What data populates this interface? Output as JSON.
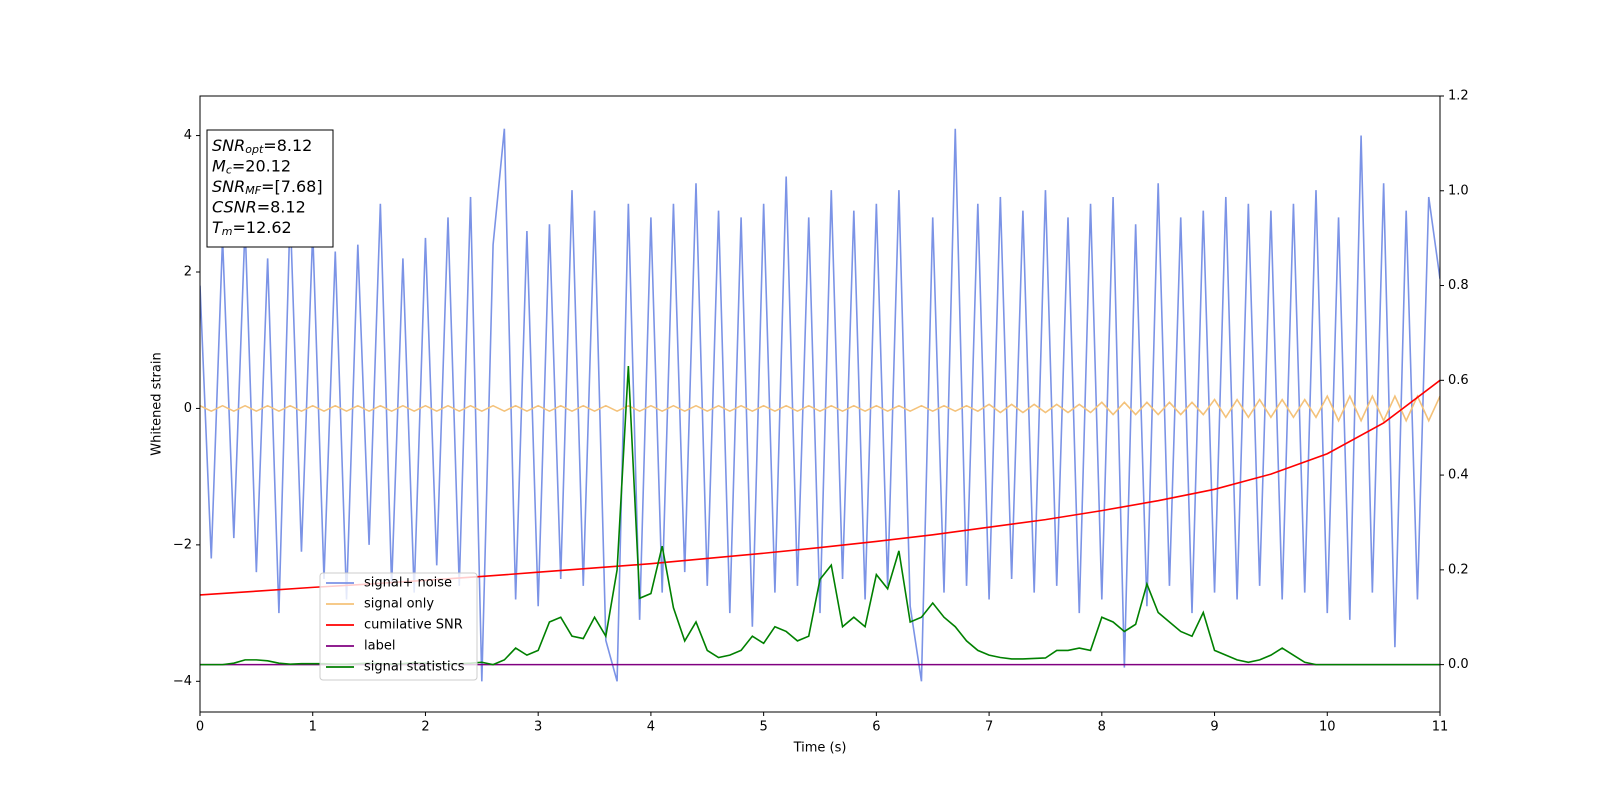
{
  "chart_data": {
    "type": "line",
    "xlabel": "Time (s)",
    "ylabel": "Whitened strain",
    "xlim": [
      0,
      11
    ],
    "xticks": [
      0,
      1,
      2,
      3,
      4,
      5,
      6,
      7,
      8,
      9,
      10,
      11
    ],
    "ylim": [
      -4.45,
      4.58
    ],
    "yticks": [
      {
        "value": -4,
        "label": "−4"
      },
      {
        "value": -2,
        "label": "−2"
      },
      0,
      2,
      4
    ],
    "y2lim": [
      -0.1,
      1.2
    ],
    "y2ticks": [
      {
        "value": 0,
        "label": "0.0"
      },
      0.2,
      0.4,
      0.6,
      0.8,
      {
        "value": 1,
        "label": "1.0"
      },
      1.2
    ],
    "legend": "lower left",
    "annotations": [
      {
        "main": "SNR",
        "sub": "opt",
        "rest": "=8.12"
      },
      {
        "main": "M",
        "sub": "c",
        "rest": "=20.12"
      },
      {
        "main": "SNR",
        "sub": "MF",
        "rest": "=[7.68]"
      },
      {
        "main": "CSNR",
        "rest": "=8.12"
      },
      {
        "main": "T",
        "sub": "m",
        "rest": "=12.62"
      }
    ],
    "x": [
      0,
      0.1,
      0.2,
      0.3,
      0.4,
      0.5,
      0.6,
      0.7,
      0.8,
      0.9,
      1,
      1.1,
      1.2,
      1.3,
      1.4,
      1.5,
      1.6,
      1.7,
      1.8,
      1.9,
      2,
      2.1,
      2.2,
      2.3,
      2.4,
      2.5,
      2.6,
      2.7,
      2.8,
      2.9,
      3,
      3.1,
      3.2,
      3.3,
      3.4,
      3.5,
      3.6,
      3.7,
      3.8,
      3.9,
      4,
      4.1,
      4.2,
      4.3,
      4.4,
      4.5,
      4.6,
      4.7,
      4.8,
      4.9,
      5,
      5.1,
      5.2,
      5.3,
      5.4,
      5.5,
      5.6,
      5.7,
      5.8,
      5.9,
      6,
      6.1,
      6.2,
      6.3,
      6.4,
      6.5,
      6.6,
      6.7,
      6.8,
      6.9,
      7,
      7.1,
      7.2,
      7.3,
      7.4,
      7.5,
      7.6,
      7.7,
      7.8,
      7.9,
      8,
      8.1,
      8.2,
      8.3,
      8.4,
      8.5,
      8.6,
      8.7,
      8.8,
      8.9,
      9,
      9.1,
      9.2,
      9.3,
      9.4,
      9.5,
      9.6,
      9.7,
      9.8,
      9.9,
      10,
      10.1,
      10.2,
      10.3,
      10.4,
      10.5,
      10.6,
      10.7,
      10.8,
      10.9,
      11
    ],
    "series": [
      {
        "name": "signal+ noise",
        "color": "#7b93e6",
        "values": [
          1.8,
          -2.2,
          2.5,
          -1.9,
          2.7,
          -2.4,
          2.2,
          -3.0,
          2.9,
          -2.1,
          2.6,
          -2.5,
          2.3,
          -2.8,
          2.4,
          -2.0,
          3.0,
          -2.6,
          2.2,
          -2.7,
          2.5,
          -2.3,
          2.8,
          -2.6,
          3.1,
          -4.0,
          2.4,
          4.1,
          -2.8,
          2.6,
          -2.9,
          2.7,
          -2.5,
          3.2,
          -2.6,
          2.9,
          -3.4,
          -4.0,
          3.0,
          -3.1,
          2.8,
          -2.7,
          3.0,
          -2.4,
          3.3,
          -2.6,
          2.9,
          -3.0,
          2.8,
          -3.2,
          3.0,
          -2.7,
          3.4,
          -2.6,
          2.8,
          -3.0,
          3.2,
          -2.5,
          2.9,
          -2.8,
          3.0,
          -2.6,
          3.2,
          -2.9,
          -4.0,
          2.8,
          -2.7,
          4.1,
          -2.6,
          3.0,
          -2.8,
          3.1,
          -2.5,
          2.9,
          -2.7,
          3.2,
          -2.6,
          2.8,
          -3.0,
          3.0,
          -2.8,
          3.1,
          -3.8,
          2.7,
          -2.9,
          3.3,
          -2.6,
          2.8,
          -3.0,
          2.9,
          -2.7,
          3.1,
          -2.8,
          3.0,
          -2.6,
          2.9,
          -2.8,
          3.0,
          -2.7,
          3.2,
          -3.0,
          2.8,
          -3.1,
          4.0,
          -2.7,
          3.3,
          -3.5,
          2.9,
          -2.8,
          3.1,
          1.9
        ]
      },
      {
        "name": "signal only",
        "color": "#f4c27a",
        "values": [
          0.04,
          -0.04,
          0.04,
          -0.04,
          0.04,
          -0.04,
          0.04,
          -0.04,
          0.04,
          -0.04,
          0.04,
          -0.04,
          0.04,
          -0.04,
          0.04,
          -0.04,
          0.04,
          -0.04,
          0.04,
          -0.04,
          0.04,
          -0.04,
          0.04,
          -0.04,
          0.04,
          -0.04,
          0.04,
          -0.04,
          0.04,
          -0.04,
          0.04,
          -0.04,
          0.04,
          -0.04,
          0.04,
          -0.04,
          0.04,
          -0.04,
          0.04,
          -0.04,
          0.04,
          -0.04,
          0.04,
          -0.04,
          0.04,
          -0.04,
          0.04,
          -0.04,
          0.04,
          -0.04,
          0.04,
          -0.04,
          0.04,
          -0.04,
          0.04,
          -0.04,
          0.04,
          -0.04,
          0.04,
          -0.04,
          0.04,
          -0.04,
          0.04,
          -0.04,
          0.04,
          -0.04,
          0.04,
          -0.04,
          0.04,
          -0.04,
          0.06,
          -0.06,
          0.06,
          -0.06,
          0.06,
          -0.06,
          0.06,
          -0.06,
          0.06,
          -0.06,
          0.09,
          -0.09,
          0.09,
          -0.09,
          0.09,
          -0.09,
          0.09,
          -0.09,
          0.09,
          -0.09,
          0.13,
          -0.13,
          0.13,
          -0.13,
          0.13,
          -0.13,
          0.13,
          -0.13,
          0.13,
          -0.13,
          0.18,
          -0.18,
          0.18,
          -0.18,
          0.18,
          -0.18,
          0.18,
          -0.18,
          0.18,
          -0.18,
          0.18
        ]
      },
      {
        "name": "cumilative SNR",
        "color": "red",
        "axis": "y2",
        "x": [
          0,
          0.5,
          1,
          1.5,
          2,
          2.5,
          3,
          3.5,
          4,
          4.5,
          5,
          5.5,
          6,
          6.5,
          7,
          7.5,
          8,
          8.5,
          9,
          9.5,
          10,
          10.5,
          11
        ],
        "values": [
          0.147,
          0.155,
          0.163,
          0.17,
          0.178,
          0.186,
          0.195,
          0.204,
          0.213,
          0.224,
          0.235,
          0.247,
          0.26,
          0.274,
          0.29,
          0.306,
          0.325,
          0.346,
          0.37,
          0.402,
          0.445,
          0.51,
          0.6
        ]
      },
      {
        "name": "label",
        "color": "purple",
        "axis": "y2",
        "x": [
          0,
          11
        ],
        "values": [
          0,
          0
        ]
      },
      {
        "name": "signal statistics",
        "color": "green",
        "axis": "y2",
        "values": [
          0,
          0,
          0,
          0.003,
          0.01,
          0.01,
          0.008,
          0.003,
          0.001,
          0.002,
          0.002,
          0.002,
          0.001,
          0.001,
          0.002,
          0.003,
          0.002,
          0.001,
          0.002,
          0.004,
          0.003,
          0.002,
          0.001,
          0.002,
          0.003,
          0.005,
          0,
          0.01,
          0.035,
          0.02,
          0.03,
          0.09,
          0.1,
          0.06,
          0.055,
          0.1,
          0.06,
          0.2,
          0.63,
          0.14,
          0.15,
          0.25,
          0.12,
          0.05,
          0.09,
          0.03,
          0.015,
          0.02,
          0.03,
          0.06,
          0.045,
          0.08,
          0.07,
          0.05,
          0.06,
          0.18,
          0.21,
          0.08,
          0.1,
          0.08,
          0.19,
          0.16,
          0.24,
          0.09,
          0.1,
          0.13,
          0.1,
          0.08,
          0.05,
          0.03,
          0.02,
          0.015,
          0.012,
          0.012,
          0.013,
          0.014,
          0.03,
          0.03,
          0.035,
          0.03,
          0.1,
          0.09,
          0.07,
          0.085,
          0.17,
          0.11,
          0.09,
          0.07,
          0.06,
          0.11,
          0.03,
          0.02,
          0.01,
          0.005,
          0.01,
          0.02,
          0.035,
          0.02,
          0.005,
          0,
          0,
          0,
          0,
          0,
          0,
          0,
          0,
          0,
          0,
          0,
          0
        ]
      }
    ]
  }
}
